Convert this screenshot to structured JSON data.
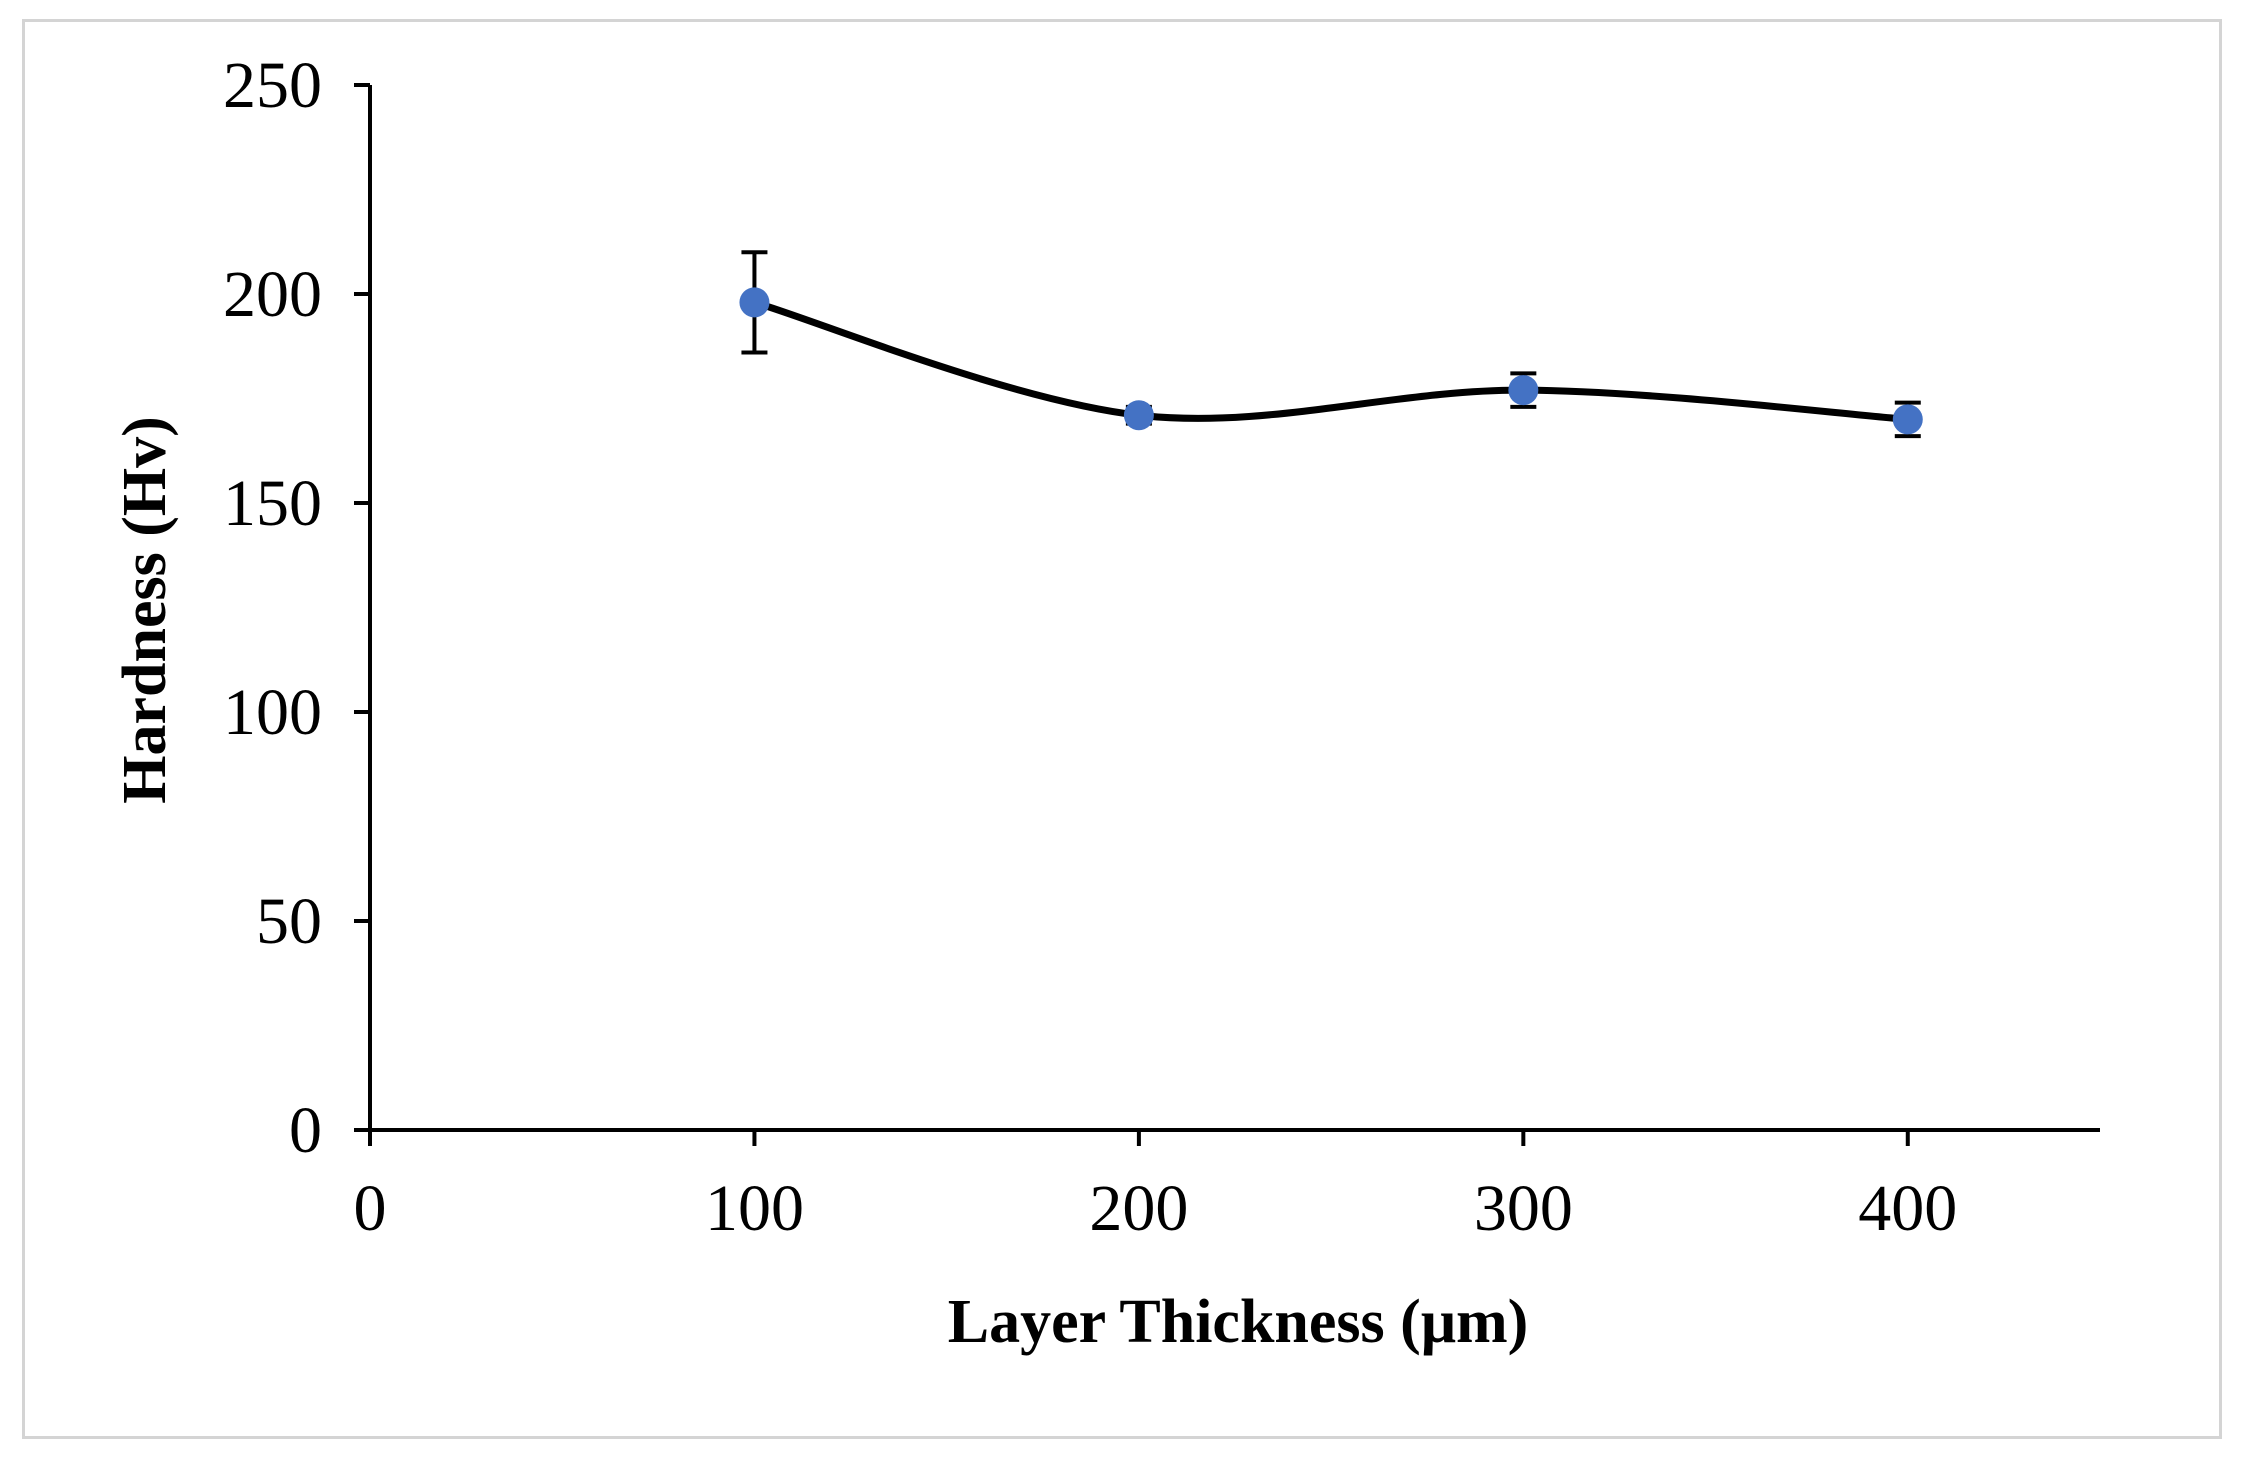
{
  "chart_data": {
    "type": "line",
    "title": "",
    "xlabel": "Layer Thickness (μm)",
    "ylabel": "Hardness (Hv)",
    "xlim": [
      0,
      450
    ],
    "ylim": [
      0,
      250
    ],
    "x_ticks": [
      0,
      100,
      200,
      300,
      400
    ],
    "y_ticks": [
      0,
      50,
      100,
      150,
      200,
      250
    ],
    "grid": false,
    "legend": "none",
    "smoothed": true,
    "series": [
      {
        "name": "Hardness",
        "x": [
          100,
          200,
          300,
          400
        ],
        "values": [
          198,
          171,
          177,
          170
        ],
        "error": [
          12,
          2,
          4,
          4
        ]
      }
    ],
    "colors": {
      "line": "#000000",
      "marker": "#4472c4",
      "error_bar": "#000000",
      "axis": "#000000",
      "frame": "#d4d4d4"
    }
  }
}
